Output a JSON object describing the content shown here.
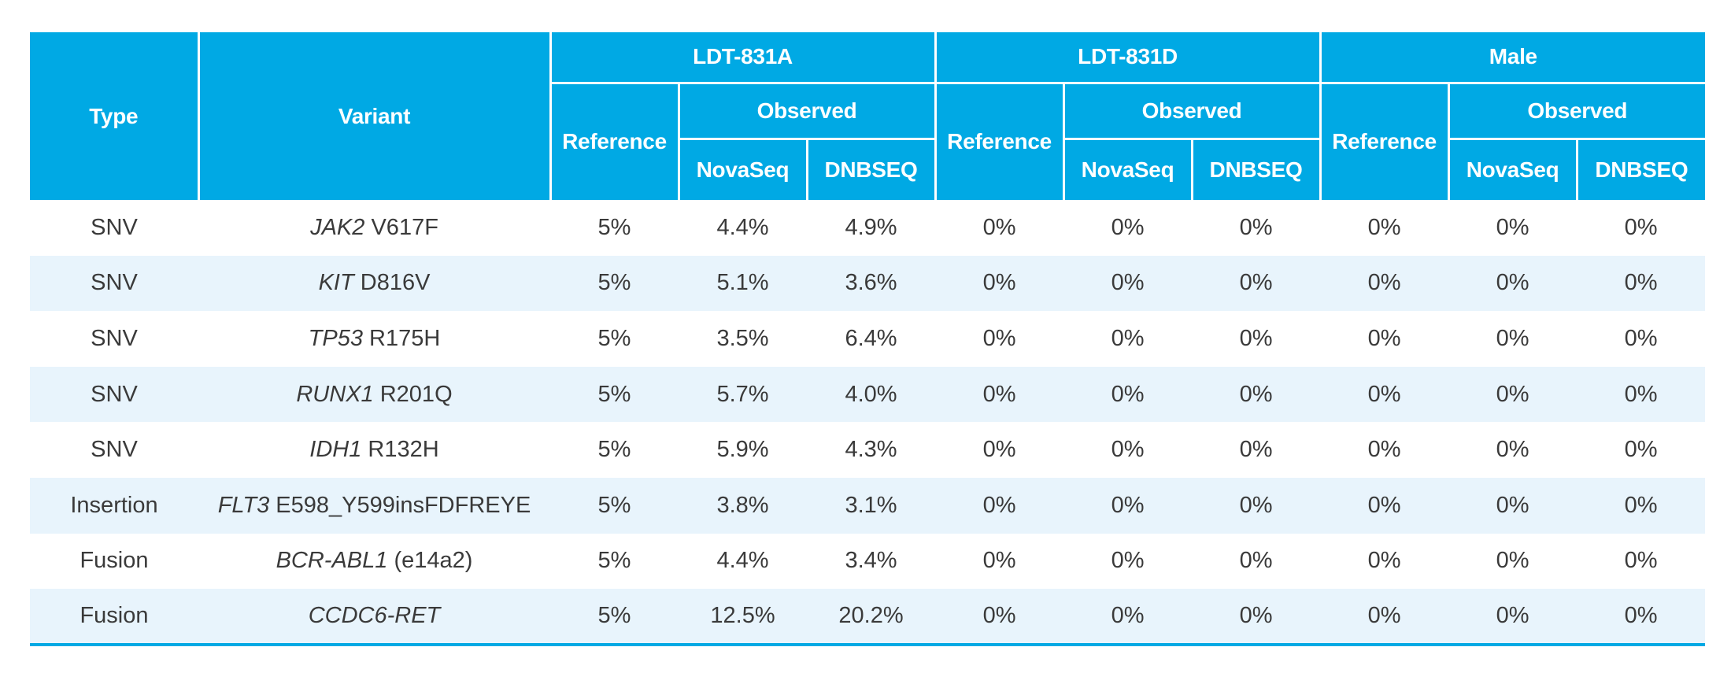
{
  "colors": {
    "header_bg": "#00A9E4",
    "header_text": "#FFFFFF",
    "row_stripe": "#E8F4FC",
    "row_plain": "#FFFFFF",
    "body_text": "#3A3A3A",
    "bottom_rule": "#00A9E4"
  },
  "table": {
    "header": {
      "type": "Type",
      "variant": "Variant",
      "groups": [
        {
          "label": "LDT-831A",
          "reference": "Reference",
          "observed": "Observed",
          "novaseq": "NovaSeq",
          "dnbseq": "DNBSEQ"
        },
        {
          "label": "LDT-831D",
          "reference": "Reference",
          "observed": "Observed",
          "novaseq": "NovaSeq",
          "dnbseq": "DNBSEQ"
        },
        {
          "label": "Male",
          "reference": "Reference",
          "observed": "Observed",
          "novaseq": "NovaSeq",
          "dnbseq": "DNBSEQ"
        }
      ]
    },
    "rows": [
      {
        "type": "SNV",
        "gene": "JAK2",
        "suffix": "V617F",
        "values": [
          "5%",
          "4.4%",
          "4.9%",
          "0%",
          "0%",
          "0%",
          "0%",
          "0%",
          "0%"
        ]
      },
      {
        "type": "SNV",
        "gene": "KIT",
        "suffix": "D816V",
        "values": [
          "5%",
          "5.1%",
          "3.6%",
          "0%",
          "0%",
          "0%",
          "0%",
          "0%",
          "0%"
        ]
      },
      {
        "type": "SNV",
        "gene": "TP53",
        "suffix": "R175H",
        "values": [
          "5%",
          "3.5%",
          "6.4%",
          "0%",
          "0%",
          "0%",
          "0%",
          "0%",
          "0%"
        ]
      },
      {
        "type": "SNV",
        "gene": "RUNX1",
        "suffix": "R201Q",
        "values": [
          "5%",
          "5.7%",
          "4.0%",
          "0%",
          "0%",
          "0%",
          "0%",
          "0%",
          "0%"
        ]
      },
      {
        "type": "SNV",
        "gene": "IDH1",
        "suffix": "R132H",
        "values": [
          "5%",
          "5.9%",
          "4.3%",
          "0%",
          "0%",
          "0%",
          "0%",
          "0%",
          "0%"
        ]
      },
      {
        "type": "Insertion",
        "gene": "FLT3",
        "suffix": "E598_Y599insFDFREYE",
        "values": [
          "5%",
          "3.8%",
          "3.1%",
          "0%",
          "0%",
          "0%",
          "0%",
          "0%",
          "0%"
        ]
      },
      {
        "type": "Fusion",
        "gene": "BCR-ABL1",
        "suffix": "(e14a2)",
        "values": [
          "5%",
          "4.4%",
          "3.4%",
          "0%",
          "0%",
          "0%",
          "0%",
          "0%",
          "0%"
        ]
      },
      {
        "type": "Fusion",
        "gene": "CCDC6-RET",
        "suffix": "",
        "values": [
          "5%",
          "12.5%",
          "20.2%",
          "0%",
          "0%",
          "0%",
          "0%",
          "0%",
          "0%"
        ]
      }
    ]
  },
  "chart_data": {
    "type": "table",
    "title": "",
    "column_groups": [
      "LDT-831A",
      "LDT-831D",
      "Male"
    ],
    "columns": [
      "Type",
      "Variant",
      "LDT-831A / Reference",
      "LDT-831A / Observed / NovaSeq",
      "LDT-831A / Observed / DNBSEQ",
      "LDT-831D / Reference",
      "LDT-831D / Observed / NovaSeq",
      "LDT-831D / Observed / DNBSEQ",
      "Male / Reference",
      "Male / Observed / NovaSeq",
      "Male / Observed / DNBSEQ"
    ],
    "rows": [
      [
        "SNV",
        "JAK2 V617F",
        "5%",
        "4.4%",
        "4.9%",
        "0%",
        "0%",
        "0%",
        "0%",
        "0%",
        "0%"
      ],
      [
        "SNV",
        "KIT D816V",
        "5%",
        "5.1%",
        "3.6%",
        "0%",
        "0%",
        "0%",
        "0%",
        "0%",
        "0%"
      ],
      [
        "SNV",
        "TP53 R175H",
        "5%",
        "3.5%",
        "6.4%",
        "0%",
        "0%",
        "0%",
        "0%",
        "0%",
        "0%"
      ],
      [
        "SNV",
        "RUNX1 R201Q",
        "5%",
        "5.7%",
        "4.0%",
        "0%",
        "0%",
        "0%",
        "0%",
        "0%",
        "0%"
      ],
      [
        "SNV",
        "IDH1 R132H",
        "5%",
        "5.9%",
        "4.3%",
        "0%",
        "0%",
        "0%",
        "0%",
        "0%",
        "0%"
      ],
      [
        "Insertion",
        "FLT3 E598_Y599insFDFREYE",
        "5%",
        "3.8%",
        "3.1%",
        "0%",
        "0%",
        "0%",
        "0%",
        "0%",
        "0%"
      ],
      [
        "Fusion",
        "BCR-ABL1 (e14a2)",
        "5%",
        "4.4%",
        "3.4%",
        "0%",
        "0%",
        "0%",
        "0%",
        "0%",
        "0%"
      ],
      [
        "Fusion",
        "CCDC6-RET",
        "5%",
        "12.5%",
        "20.2%",
        "0%",
        "0%",
        "0%",
        "0%",
        "0%",
        "0%"
      ]
    ]
  }
}
